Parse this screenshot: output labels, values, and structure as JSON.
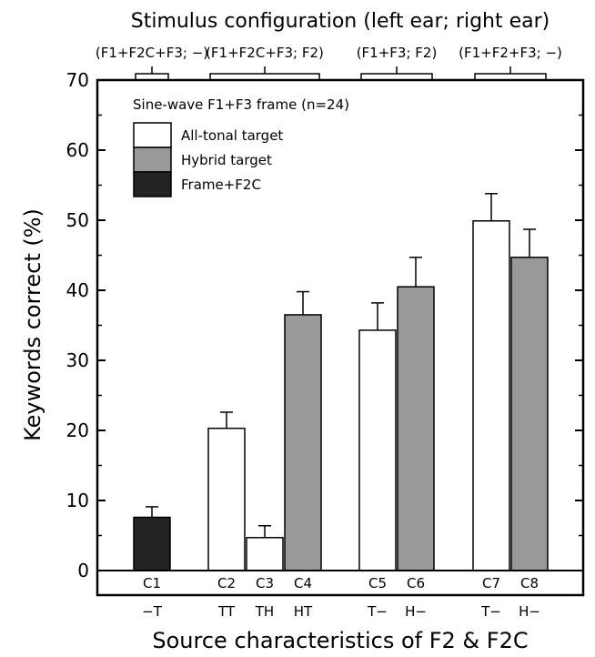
{
  "chart_data": {
    "type": "bar",
    "title": "Stimulus configuration (left ear; right ear)",
    "xlabel": "Source characteristics of F2 & F2C",
    "ylabel": "Keywords correct (%)",
    "ylim": [
      0,
      70
    ],
    "yticks": [
      0,
      10,
      20,
      30,
      40,
      50,
      60,
      70
    ],
    "grid": false,
    "legend": {
      "title": "Sine-wave F1+F3 frame (n=24)",
      "placement": "top-left",
      "entries": [
        {
          "label": "All-tonal target",
          "color": "#ffffff"
        },
        {
          "label": "Hybrid target",
          "color": "#999999"
        },
        {
          "label": "Frame+F2C",
          "color": "#222222"
        }
      ]
    },
    "groups": [
      {
        "label": "(F1+F2C+F3; −)",
        "conditions": [
          "C1"
        ]
      },
      {
        "label": "(F1+F2C+F3; F2)",
        "conditions": [
          "C2",
          "C3",
          "C4"
        ]
      },
      {
        "label": "(F1+F3; F2)",
        "conditions": [
          "C5",
          "C6"
        ]
      },
      {
        "label": "(F1+F2+F3; −)",
        "conditions": [
          "C7",
          "C8"
        ]
      }
    ],
    "bars": [
      {
        "condition": "C1",
        "source": "−T",
        "value": 7.6,
        "error": 1.5,
        "series": "Frame+F2C"
      },
      {
        "condition": "C2",
        "source": "TT",
        "value": 20.3,
        "error": 2.3,
        "series": "All-tonal target"
      },
      {
        "condition": "C3",
        "source": "TH",
        "value": 4.7,
        "error": 1.7,
        "series": "All-tonal target"
      },
      {
        "condition": "C4",
        "source": "HT",
        "value": 36.5,
        "error": 3.3,
        "series": "Hybrid target"
      },
      {
        "condition": "C5",
        "source": "T−",
        "value": 34.3,
        "error": 3.9,
        "series": "All-tonal target"
      },
      {
        "condition": "C6",
        "source": "H−",
        "value": 40.5,
        "error": 4.2,
        "series": "Hybrid target"
      },
      {
        "condition": "C7",
        "source": "T−",
        "value": 49.9,
        "error": 3.9,
        "series": "All-tonal target"
      },
      {
        "condition": "C8",
        "source": "H−",
        "value": 44.7,
        "error": 4.0,
        "series": "Hybrid target"
      }
    ]
  }
}
